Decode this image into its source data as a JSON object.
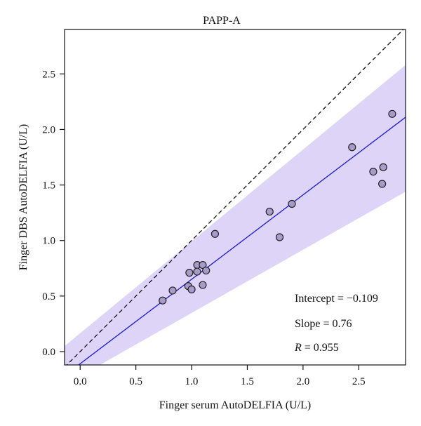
{
  "chart_data": {
    "type": "scatter",
    "title": "PAPP-A",
    "xlabel": "Finger serum AutoDELFIA (U/L)",
    "ylabel": "Finger DBS AutoDELFIA (U/L)",
    "xlim": [
      -0.14,
      2.92
    ],
    "ylim": [
      -0.12,
      2.9
    ],
    "xticks": [
      "0.0",
      "0.5",
      "1.0",
      "1.5",
      "2.0",
      "2.5"
    ],
    "yticks": [
      "0.0",
      "0.5",
      "1.0",
      "1.5",
      "2.0",
      "2.5"
    ],
    "grid": false,
    "points": [
      {
        "x": 0.74,
        "y": 0.46
      },
      {
        "x": 0.83,
        "y": 0.55
      },
      {
        "x": 0.97,
        "y": 0.59
      },
      {
        "x": 0.98,
        "y": 0.71
      },
      {
        "x": 1.0,
        "y": 0.56
      },
      {
        "x": 1.05,
        "y": 0.78
      },
      {
        "x": 1.05,
        "y": 0.72
      },
      {
        "x": 1.1,
        "y": 0.78
      },
      {
        "x": 1.1,
        "y": 0.6
      },
      {
        "x": 1.13,
        "y": 0.73
      },
      {
        "x": 1.21,
        "y": 1.06
      },
      {
        "x": 1.7,
        "y": 1.26
      },
      {
        "x": 1.79,
        "y": 1.03
      },
      {
        "x": 1.9,
        "y": 1.33
      },
      {
        "x": 2.44,
        "y": 1.84
      },
      {
        "x": 2.63,
        "y": 1.62
      },
      {
        "x": 2.71,
        "y": 1.51
      },
      {
        "x": 2.72,
        "y": 1.66
      },
      {
        "x": 2.8,
        "y": 2.14
      }
    ],
    "identity_line": {
      "style": "dashed",
      "color": "#111111"
    },
    "fit_line": {
      "intercept": -0.109,
      "slope": 0.76,
      "color": "#1a1ad6"
    },
    "confidence_band": {
      "color": "#ddd4f8",
      "x": [
        -0.14,
        2.92
      ],
      "lower": [
        -0.3,
        1.44
      ],
      "upper": [
        0.05,
        2.58
      ]
    },
    "point_style": {
      "fill": "#a79cc9",
      "stroke": "#222222"
    },
    "annotations": [
      {
        "prefix": "Intercept = ",
        "value": "−0.109",
        "italic_prefix": false
      },
      {
        "prefix": "Slope = ",
        "value": "0.76",
        "italic_prefix": false
      },
      {
        "prefix": "R",
        "value": " = 0.955",
        "italic_prefix": true
      }
    ]
  }
}
